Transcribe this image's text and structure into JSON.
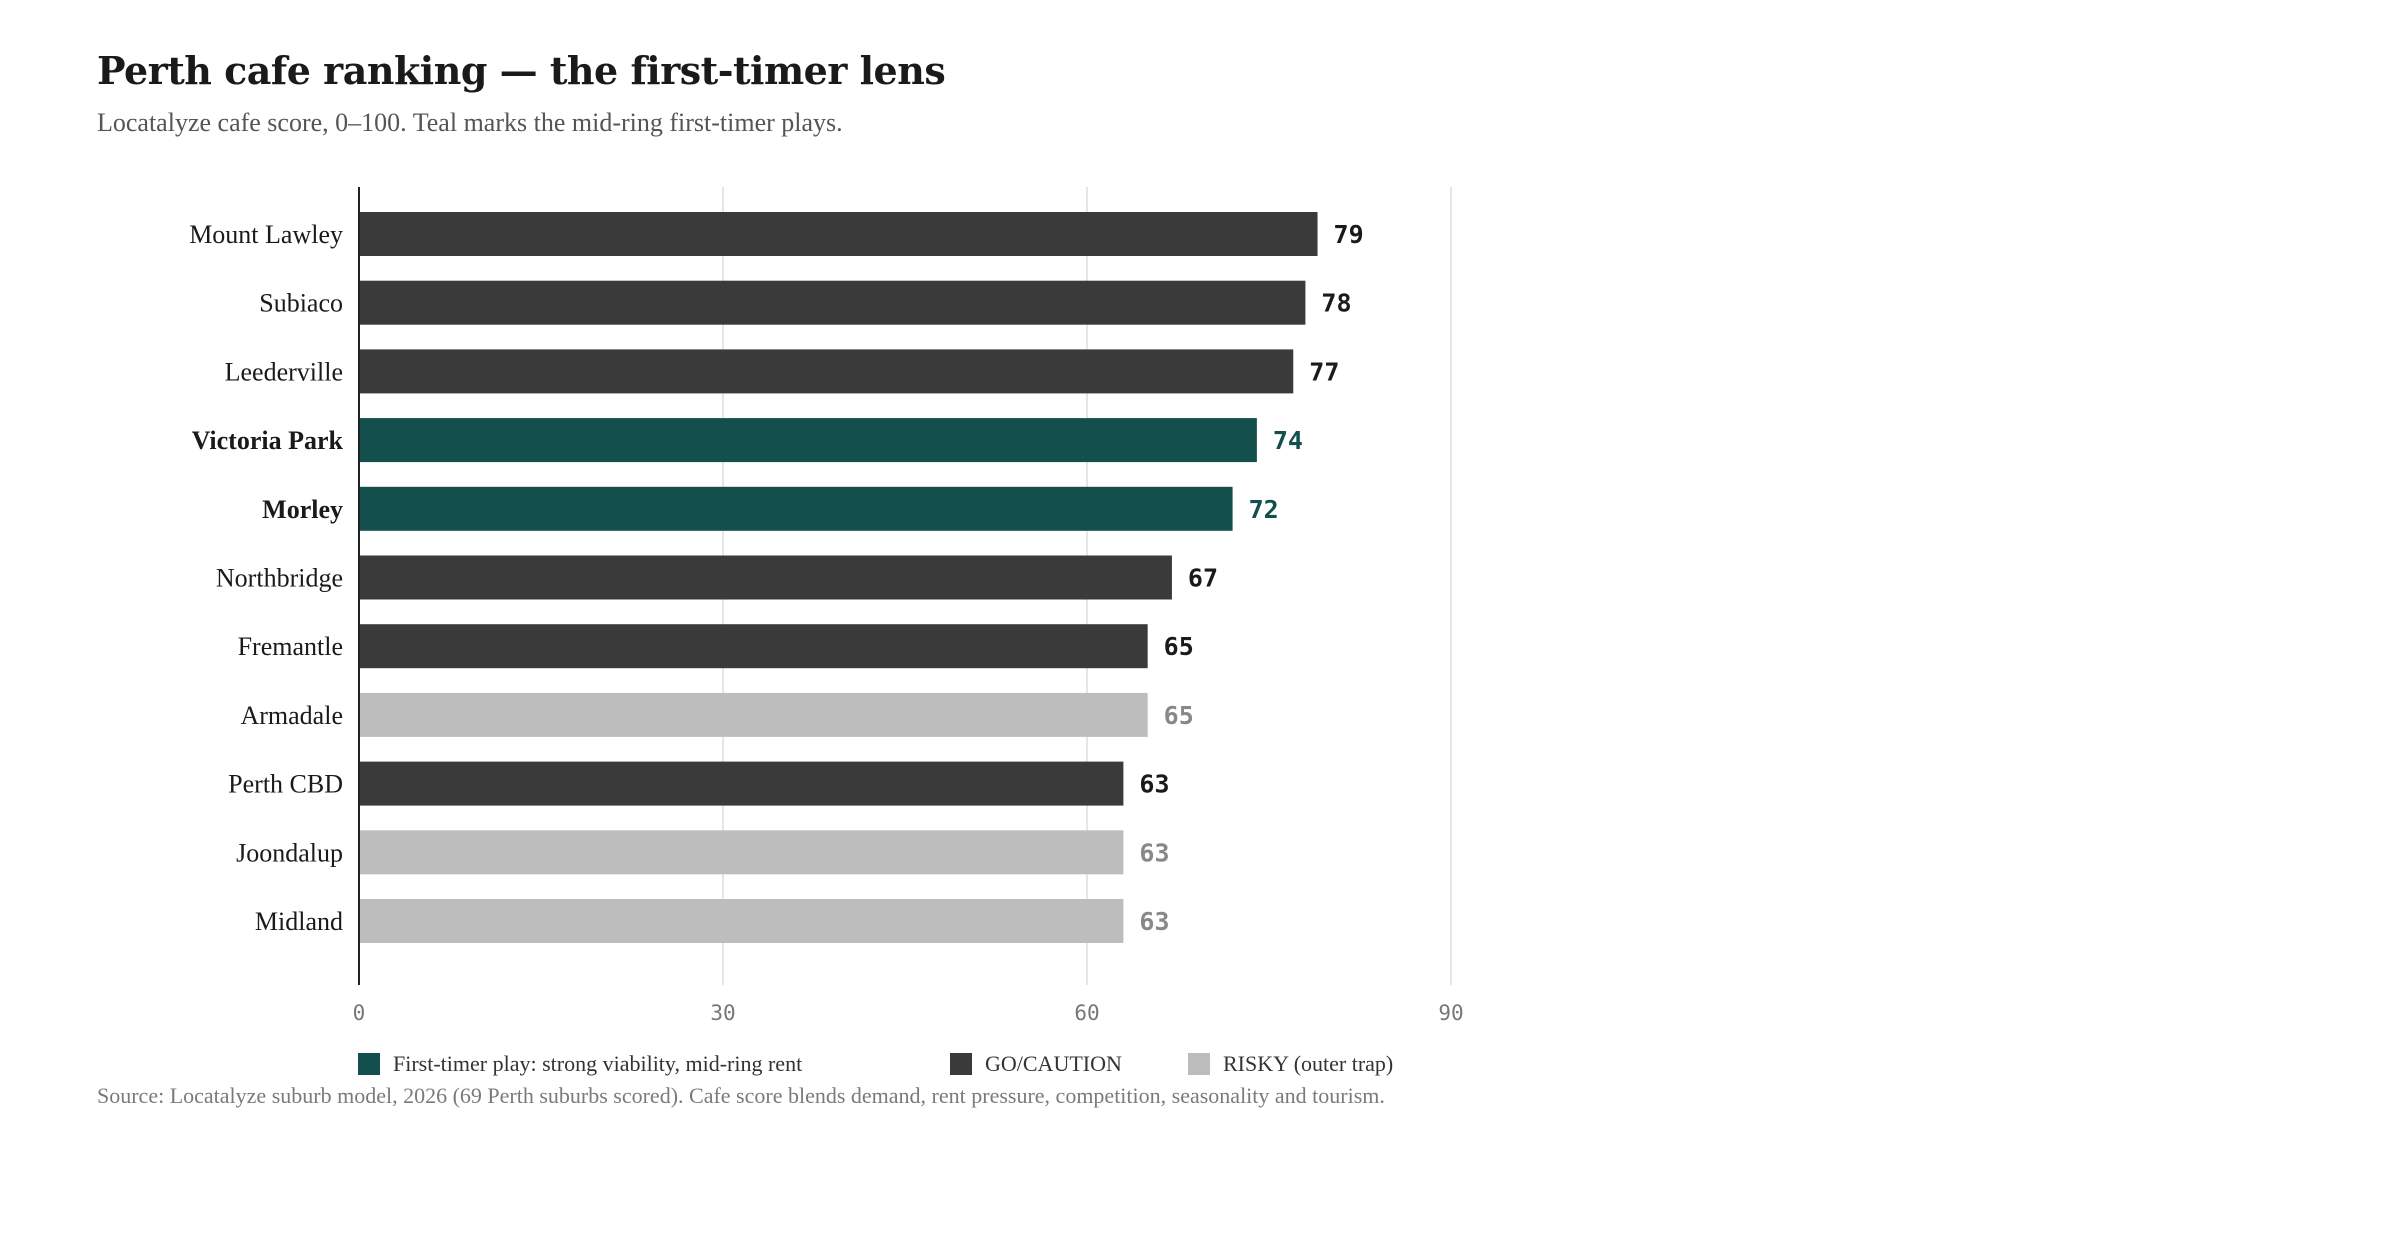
{
  "chart_data": {
    "type": "bar",
    "orientation": "horizontal",
    "title": "Perth cafe ranking — the first-timer lens",
    "subtitle": "Locatalyze cafe score, 0–100. Teal marks the mid-ring first-timer plays.",
    "categories": [
      "Mount Lawley",
      "Subiaco",
      "Leederville",
      "Victoria Park",
      "Morley",
      "Northbridge",
      "Fremantle",
      "Armadale",
      "Perth CBD",
      "Joondalup",
      "Midland"
    ],
    "values": [
      79,
      78,
      77,
      74,
      72,
      67,
      65,
      65,
      63,
      63,
      63
    ],
    "groups": [
      "go",
      "go",
      "go",
      "first",
      "first",
      "go",
      "go",
      "risky",
      "go",
      "risky",
      "risky"
    ],
    "highlighted_categories": [
      "Victoria Park",
      "Morley"
    ],
    "xlim": [
      0,
      90
    ],
    "xticks": [
      0,
      30,
      60,
      90
    ],
    "grid": "vertical",
    "legend": [
      {
        "key": "first",
        "label": "First-timer play: strong viability, mid-ring rent",
        "color": "#134f4c"
      },
      {
        "key": "go",
        "label": "GO/CAUTION",
        "color": "#3a3a3a"
      },
      {
        "key": "risky",
        "label": "RISKY (outer trap)",
        "color": "#bdbdbd"
      }
    ],
    "label_colors": {
      "first": "#134f4c",
      "go": "#1a1a1a",
      "risky": "#888888"
    },
    "legend_position": "bottom",
    "source": "Source: Locatalyze suburb model, 2026 (69 Perth suburbs scored). Cafe score blends demand, rent pressure, competition, seasonality and tourism."
  }
}
